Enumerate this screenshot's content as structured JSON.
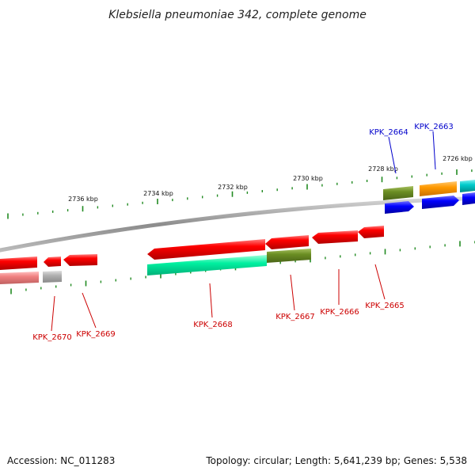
{
  "title": "Klebsiella pneumoniae 342, complete genome",
  "footer": {
    "accession": "Accession: NC_011283",
    "summary": "Topology: circular; Length: 5,641,239 bp; Genes: 5,538"
  },
  "ruler": {
    "labels": [
      "2736 kbp",
      "2734 kbp",
      "2732 kbp",
      "2730 kbp",
      "2728 kbp",
      "2726 kbp"
    ]
  },
  "genes": {
    "kpk_2670": "KPK_2670",
    "kpk_2669": "KPK_2669",
    "kpk_2668": "KPK_2668",
    "kpk_2667": "KPK_2667",
    "kpk_2666": "KPK_2666",
    "kpk_2665": "KPK_2665",
    "kpk_2664": "KPK_2664",
    "kpk_2663": "KPK_2663"
  },
  "colors": {
    "reverse_label": "#cc0000",
    "forward_label": "#0000cc",
    "red_feature": "#ff0000",
    "pink_feature": "#f08080",
    "grey_feature": "#b0b0b0",
    "aquamarine_feature": "#00f0a0",
    "olive_feature": "#6b8e23",
    "orange_feature": "#ff9900",
    "blue_feature": "#0000ff",
    "cyan_feature": "#00cccc",
    "backbone": "#999999",
    "tick": "#228b22"
  }
}
